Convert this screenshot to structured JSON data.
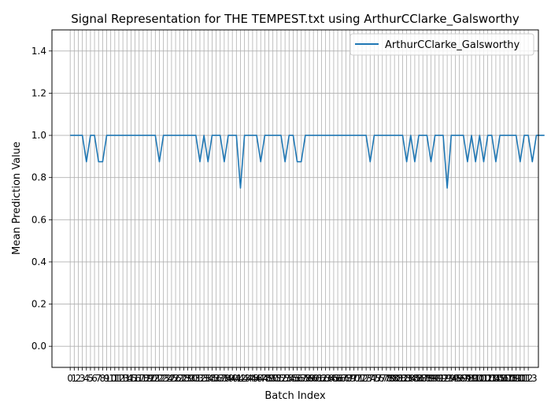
{
  "chart_data": {
    "type": "line",
    "title": "Signal Representation for THE TEMPEST.txt using ArthurCClarke_Galsworthy",
    "xlabel": "Batch Index",
    "ylabel": "Mean Prediction Value",
    "xlim": [
      -4.5,
      115.5
    ],
    "ylim": [
      -0.1,
      1.5
    ],
    "yticks": [
      0.0,
      0.2,
      0.4,
      0.6,
      0.8,
      1.0,
      1.2,
      1.4
    ],
    "ytick_labels": [
      "0.0",
      "0.2",
      "0.4",
      "0.6",
      "0.8",
      "1.0",
      "1.2",
      "1.4"
    ],
    "xticks_start": 0,
    "xticks_end": 113,
    "x_tick_labels_note": "integer ticks 0..113, labels overlap",
    "grid": true,
    "legend_position": "top-right",
    "color": "#1f77b4",
    "series": [
      {
        "name": "ArthurCClarke_Galsworthy",
        "x_start": 0,
        "values": [
          1.0,
          1.0,
          1.0,
          1.0,
          0.875,
          1.0,
          1.0,
          0.875,
          0.875,
          1.0,
          1.0,
          1.0,
          1.0,
          1.0,
          1.0,
          1.0,
          1.0,
          1.0,
          1.0,
          1.0,
          1.0,
          1.0,
          0.875,
          1.0,
          1.0,
          1.0,
          1.0,
          1.0,
          1.0,
          1.0,
          1.0,
          1.0,
          0.875,
          1.0,
          0.875,
          1.0,
          1.0,
          1.0,
          0.875,
          1.0,
          1.0,
          1.0,
          0.75,
          1.0,
          1.0,
          1.0,
          1.0,
          0.875,
          1.0,
          1.0,
          1.0,
          1.0,
          1.0,
          0.875,
          1.0,
          1.0,
          0.875,
          0.875,
          1.0,
          1.0,
          1.0,
          1.0,
          1.0,
          1.0,
          1.0,
          1.0,
          1.0,
          1.0,
          1.0,
          1.0,
          1.0,
          1.0,
          1.0,
          1.0,
          0.875,
          1.0,
          1.0,
          1.0,
          1.0,
          1.0,
          1.0,
          1.0,
          1.0,
          0.875,
          1.0,
          0.875,
          1.0,
          1.0,
          1.0,
          0.875,
          1.0,
          1.0,
          1.0,
          0.75,
          1.0,
          1.0,
          1.0,
          1.0,
          0.875,
          1.0,
          0.875,
          1.0,
          0.875,
          1.0,
          1.0,
          0.875,
          1.0,
          1.0,
          1.0,
          1.0,
          1.0,
          0.875,
          1.0,
          1.0,
          0.875,
          1.0,
          1.0,
          1.0
        ]
      }
    ]
  }
}
